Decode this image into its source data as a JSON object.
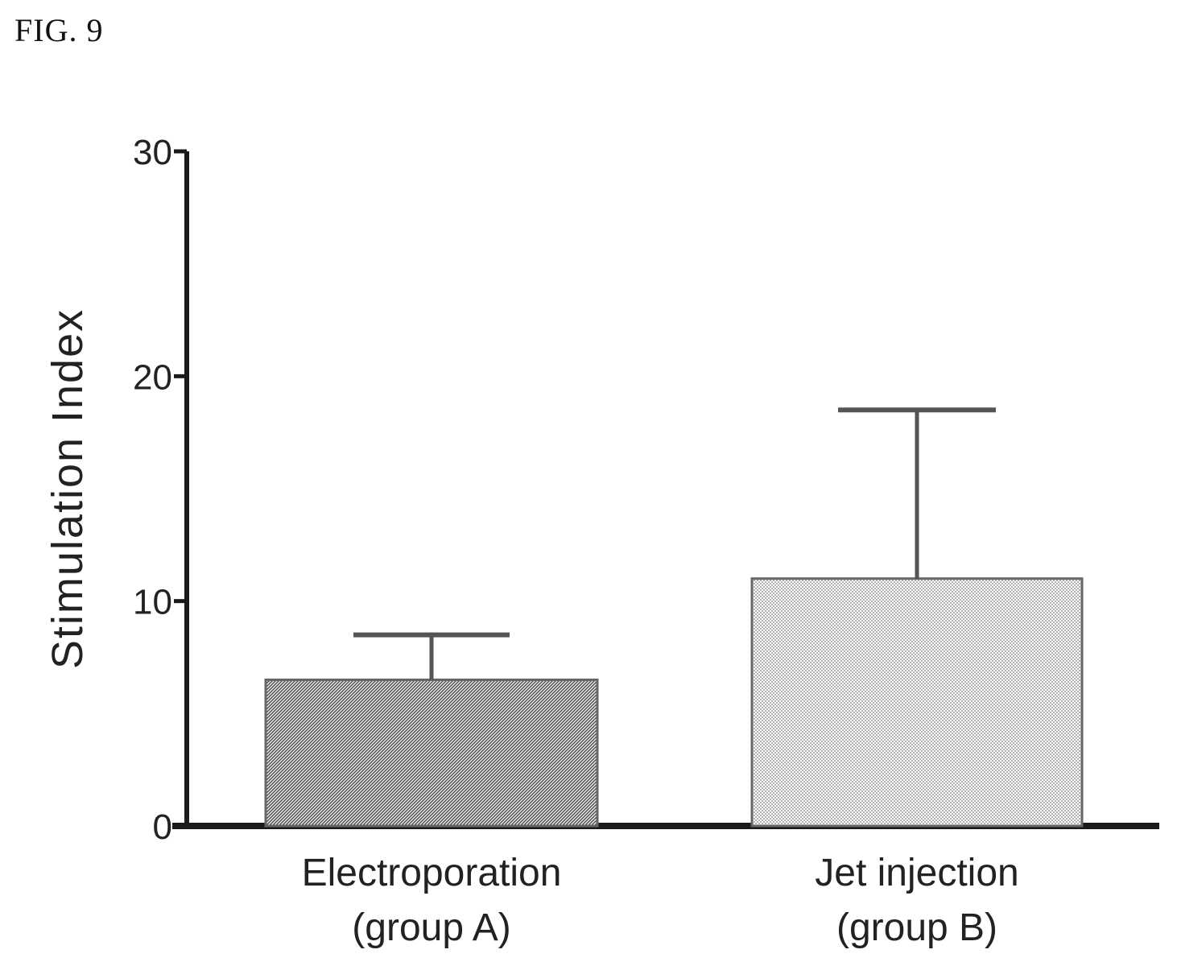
{
  "figure_label": "FIG. 9",
  "chart_data": {
    "type": "bar",
    "categories": [
      [
        "Electroporation",
        "(group A)"
      ],
      [
        "Jet injection",
        "(group B)"
      ]
    ],
    "values": [
      6.5,
      11.0
    ],
    "error_upper": [
      8.5,
      18.5
    ],
    "ylabel": "Stimulation  Index",
    "ylim": [
      0,
      30
    ],
    "yticks": [
      "0",
      "10",
      "20",
      "30"
    ],
    "grid": false,
    "colors": {
      "axis": "#1a1a1a",
      "bar_a": "#6e6e6e",
      "bar_b": "#b4b4b4",
      "text": "#222222"
    }
  }
}
